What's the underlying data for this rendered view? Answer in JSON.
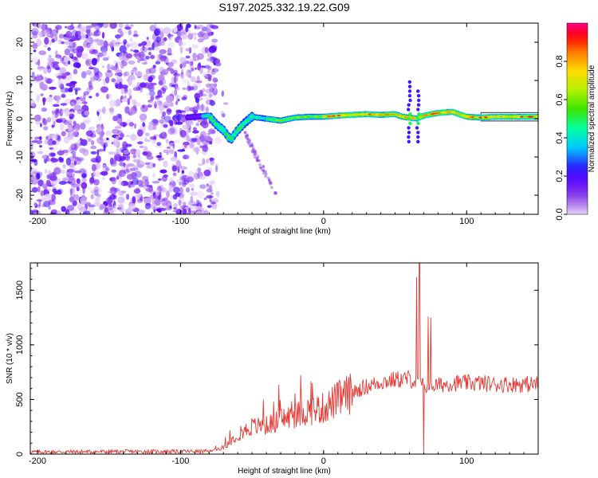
{
  "title": "S197.2025.332.19.22.G09",
  "chart_data": [
    {
      "type": "heatmap",
      "name": "spectrogram",
      "xlabel": "Height of straight line (km)",
      "ylabel": "Frequency (Hz)",
      "xlim": [
        -205,
        150
      ],
      "ylim": [
        -25,
        25
      ],
      "xticks": [
        -200,
        -100,
        0,
        100
      ],
      "yticks": [
        -20,
        -10,
        0,
        10,
        20
      ],
      "colorbar": {
        "label": "Normalized spectral amplitude",
        "range": [
          0,
          1
        ],
        "ticks": [
          0.0,
          0.2,
          0.4,
          0.6,
          0.8
        ]
      },
      "ridge": {
        "description_points_km_hz": [
          [
            -90,
            0.5
          ],
          [
            -80,
            0.8
          ],
          [
            -75,
            -1.5
          ],
          [
            -70,
            -3.0
          ],
          [
            -65,
            -5.5
          ],
          [
            -60,
            -3.0
          ],
          [
            -55,
            -1.0
          ],
          [
            -50,
            0.5
          ],
          [
            -40,
            0.0
          ],
          [
            -30,
            -0.5
          ],
          [
            -20,
            0.3
          ],
          [
            -10,
            0.5
          ],
          [
            0,
            0.5
          ],
          [
            10,
            0.8
          ],
          [
            20,
            1.0
          ],
          [
            30,
            1.2
          ],
          [
            40,
            1.0
          ],
          [
            50,
            1.2
          ],
          [
            55,
            0.5
          ],
          [
            60,
            0.3
          ],
          [
            65,
            0.0
          ],
          [
            70,
            0.8
          ],
          [
            80,
            1.5
          ],
          [
            90,
            1.8
          ],
          [
            100,
            0.5
          ],
          [
            110,
            0.3
          ],
          [
            120,
            0.5
          ],
          [
            150,
            0.5
          ]
        ],
        "vertical_streaks_km": [
          60,
          66
        ]
      }
    },
    {
      "type": "line",
      "name": "snr",
      "xlabel": "Height of straight line (km)",
      "ylabel": "SNR (10 * v/v)",
      "xlim": [
        -205,
        150
      ],
      "ylim": [
        0,
        1750
      ],
      "xticks": [
        -200,
        -100,
        0,
        100
      ],
      "yticks": [
        0,
        500,
        1000,
        1500
      ],
      "series": [
        {
          "name": "SNR",
          "color": "#e53935",
          "envelope_x": [
            -205,
            -80,
            -70,
            -60,
            -50,
            -40,
            -30,
            -20,
            -10,
            0,
            10,
            20,
            30,
            40,
            50,
            60,
            70,
            80,
            90,
            100,
            110,
            120,
            150
          ],
          "envelope_y": [
            20,
            25,
            60,
            180,
            250,
            260,
            320,
            350,
            400,
            420,
            500,
            560,
            620,
            660,
            680,
            690,
            620,
            630,
            650,
            650,
            650,
            640,
            640
          ],
          "spikes": [
            {
              "x": 65,
              "y": 1620
            },
            {
              "x": 67,
              "y": 1750
            },
            {
              "x": 70,
              "y": 20
            },
            {
              "x": 73,
              "y": 1260
            },
            {
              "x": 75,
              "y": 1250
            },
            {
              "x": -42,
              "y": 500
            },
            {
              "x": -35,
              "y": 480
            },
            {
              "x": -8,
              "y": 650
            }
          ]
        }
      ]
    }
  ]
}
